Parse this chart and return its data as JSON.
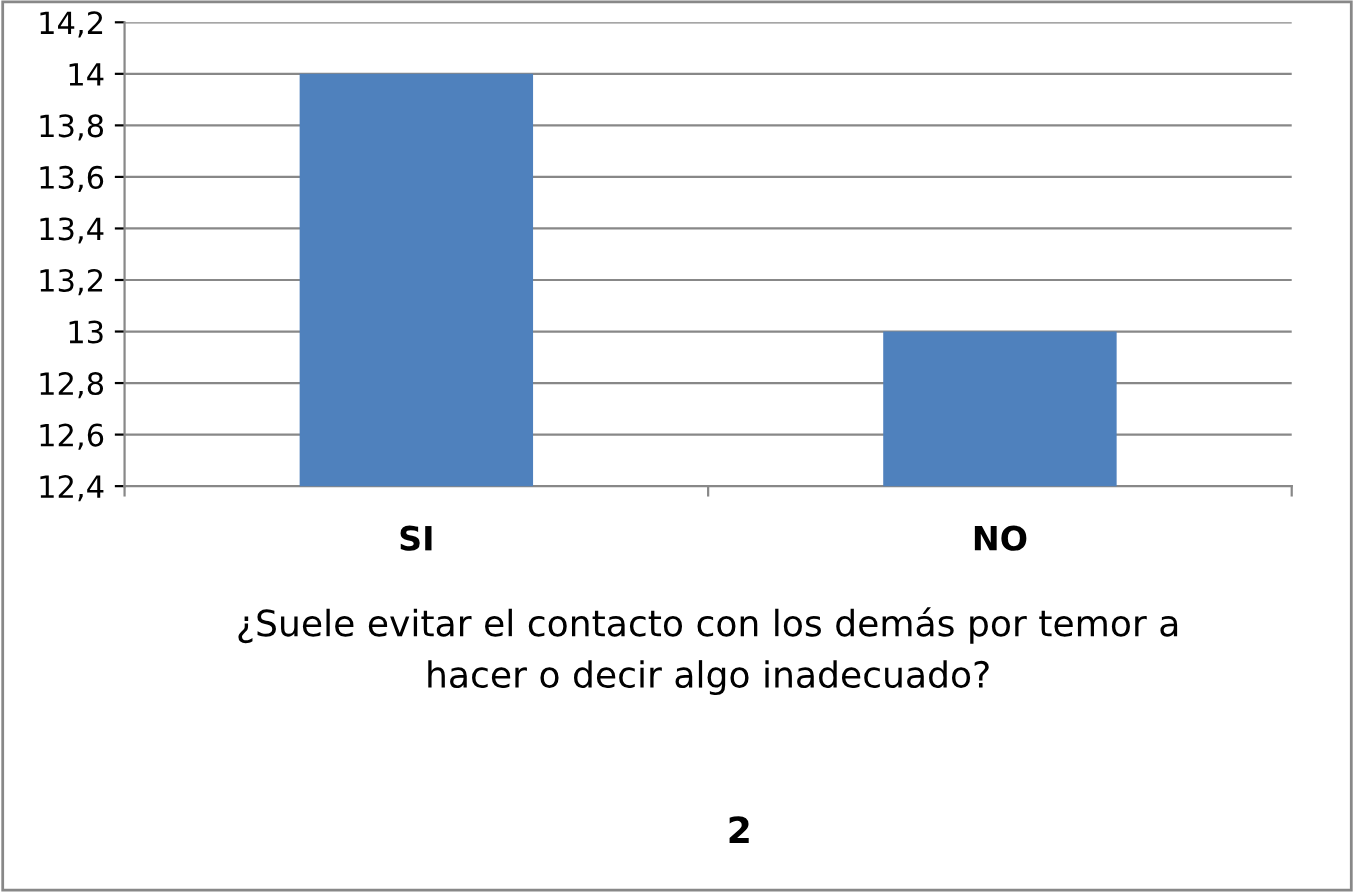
{
  "chart_data": {
    "type": "bar",
    "categories": [
      "SI",
      "NO"
    ],
    "values": [
      14,
      13
    ],
    "color": "#4f81bd",
    "ylim": [
      12.4,
      14.2
    ],
    "yticks": [
      {
        "value": 12.4,
        "label": "12,4"
      },
      {
        "value": 12.6,
        "label": "12,6"
      },
      {
        "value": 12.8,
        "label": "12,8"
      },
      {
        "value": 13,
        "label": "13"
      },
      {
        "value": 13.2,
        "label": "13,2"
      },
      {
        "value": 13.4,
        "label": "13,4"
      },
      {
        "value": 13.6,
        "label": "13,6"
      },
      {
        "value": 13.8,
        "label": "13,8"
      },
      {
        "value": 14,
        "label": "14"
      },
      {
        "value": 14.2,
        "label": "14,2"
      }
    ],
    "xlabel": "¿Suele evitar el contacto con los demás por temor a\nhacer o decir algo inadecuado?",
    "annotations": [
      "2"
    ],
    "grid": "y",
    "legend": false
  }
}
